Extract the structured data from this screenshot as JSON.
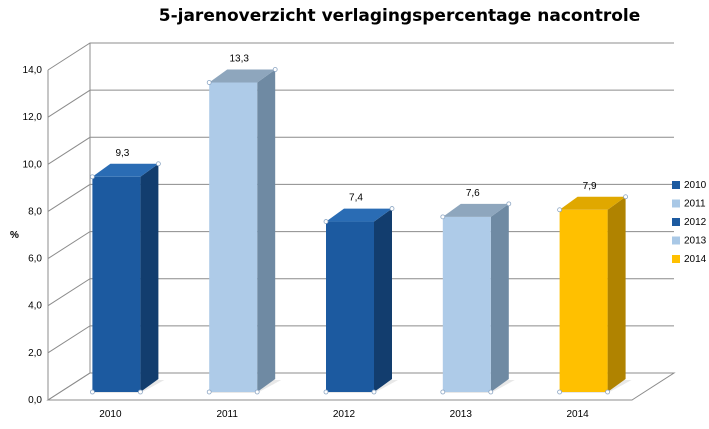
{
  "chart_data": {
    "type": "bar",
    "title": "5-jarenoverzicht verlagingspercentage nacontrole",
    "ylabel": "%",
    "xlabel": "",
    "categories": [
      "2010",
      "2011",
      "2012",
      "2013",
      "2014"
    ],
    "values": [
      9.3,
      13.3,
      7.4,
      7.6,
      7.9
    ],
    "value_labels": [
      "9,3",
      "13,3",
      "7,4",
      "7,6",
      "7,9"
    ],
    "ylim": [
      0,
      14
    ],
    "y_ticks": [
      "0,0",
      "2,0",
      "4,0",
      "6,0",
      "8,0",
      "10,0",
      "12,0",
      "14,0"
    ],
    "grid": true,
    "style": "3d-column",
    "legend_position": "right",
    "legend": [
      {
        "label": "2010",
        "color": "#1c5aa0"
      },
      {
        "label": "2011",
        "color": "#a9c8e6"
      },
      {
        "label": "2012",
        "color": "#1c5aa0"
      },
      {
        "label": "2013",
        "color": "#a9c8e6"
      },
      {
        "label": "2014",
        "color": "#ffc000"
      }
    ],
    "bar_colors": [
      {
        "front": "#1c5aa0",
        "side": "#123d6e",
        "top": "#2a6cb4"
      },
      {
        "front": "#aecbe8",
        "side": "#6f8aa3",
        "top": "#8ea6bd"
      },
      {
        "front": "#1c5aa0",
        "side": "#123d6e",
        "top": "#2a6cb4"
      },
      {
        "front": "#aecbe8",
        "side": "#6f8aa3",
        "top": "#8ea6bd"
      },
      {
        "front": "#ffc000",
        "side": "#b08300",
        "top": "#e0a800"
      }
    ]
  }
}
